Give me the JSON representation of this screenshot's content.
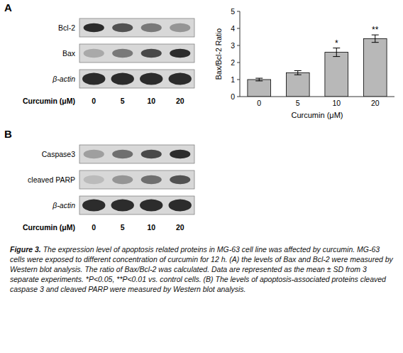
{
  "chart_data": [
    {
      "type": "heatmap",
      "title": "A",
      "x_categories": [
        "0",
        "5",
        "10",
        "20"
      ],
      "y_categories": [
        "Bcl-2",
        "Bax",
        "β-actin"
      ],
      "xlabel": "Curcumin (μM)",
      "cells": [
        [
          0.9,
          0.7,
          0.5,
          0.35
        ],
        [
          0.25,
          0.5,
          0.75,
          0.9
        ],
        [
          0.9,
          0.9,
          0.9,
          0.9
        ]
      ],
      "color": "#1a1a1a"
    },
    {
      "type": "bar",
      "categories": [
        "0",
        "5",
        "10",
        "20"
      ],
      "values": [
        1.0,
        1.4,
        2.6,
        3.4
      ],
      "errors": [
        0.08,
        0.12,
        0.25,
        0.22
      ],
      "color": "#b8b8b8",
      "xlabel": "Curcumin (μM)",
      "ylabel": "Bax/Bcl-2 Ratio",
      "ylim": [
        0,
        5
      ],
      "yticks": [
        0,
        1,
        2,
        3,
        4,
        5
      ],
      "grid": false,
      "annotations": [
        {
          "category": "10",
          "text": "*"
        },
        {
          "category": "20",
          "text": "**"
        }
      ]
    },
    {
      "type": "heatmap",
      "title": "B",
      "x_categories": [
        "0",
        "5",
        "10",
        "20"
      ],
      "y_categories": [
        "Caspase3",
        "cleaved PARP",
        "β-actin"
      ],
      "xlabel": "Curcumin (μM)",
      "cells": [
        [
          0.3,
          0.55,
          0.75,
          0.9
        ],
        [
          0.15,
          0.35,
          0.55,
          0.7
        ],
        [
          0.9,
          0.9,
          0.9,
          0.9
        ]
      ],
      "color": "#1a1a1a"
    }
  ],
  "caption_label": "Figure 3.",
  "caption": " The expression level of apoptosis related proteins in MG-63 cell line was affected by curcumin. MG-63 cells were exposed to different concentration of curcumin for 12 h. (A) the levels of Bax and Bcl-2 were measured by Western blot analysis. The ratio of Bax/Bcl-2 was calculated. Data are represented as the mean ± SD from 3 separate experiments. *P<0.05, **P<0.01 vs. control cells. (B) The levels of apoptosis-associated proteins cleaved caspase 3 and cleaved PARP were measured by Western blot analysis."
}
